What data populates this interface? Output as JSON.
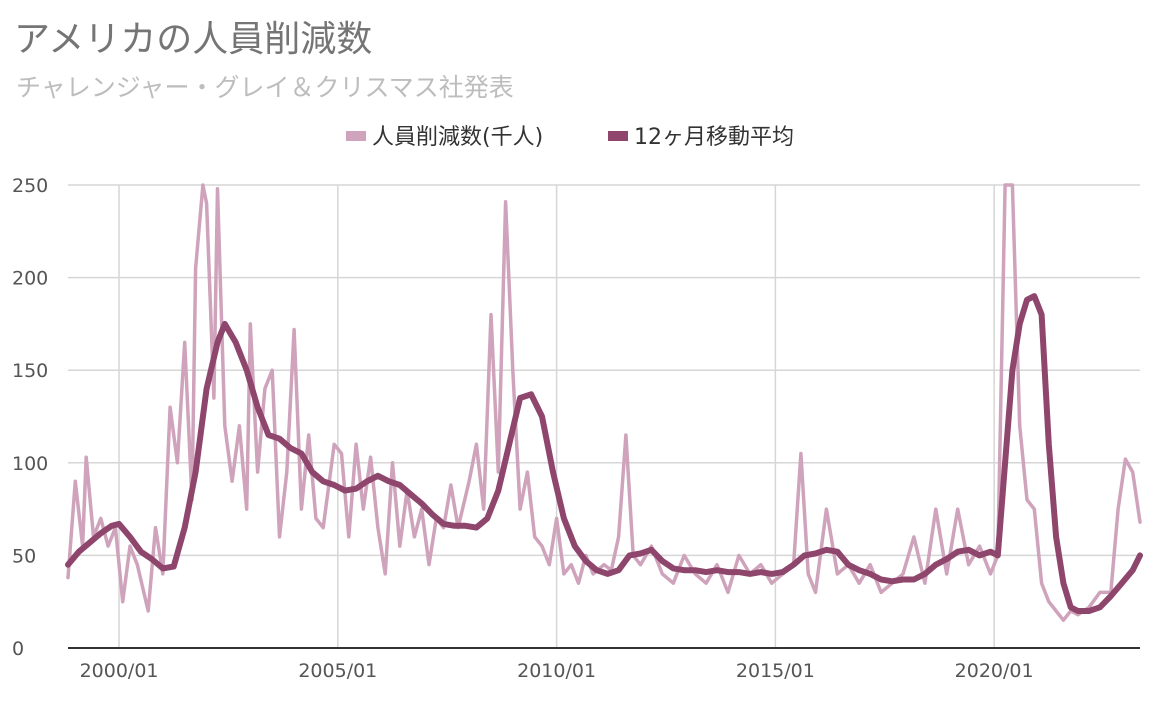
{
  "chart_data": {
    "type": "line",
    "title": "アメリカの人員削減数",
    "subtitle": "チャレンジャー・グレイ＆クリスマス社発表",
    "legend_position": "top",
    "grid": true,
    "colors": {
      "monthly": "#cfa3bb",
      "avg": "#8f466d"
    },
    "x_range": [
      "1998-11",
      "2023-05"
    ],
    "ylim": [
      0,
      250
    ],
    "y_ticks": [
      "0",
      "50",
      "100",
      "150",
      "200",
      "250"
    ],
    "x_ticks": [
      {
        "date": "2000-01",
        "label": "2000/01"
      },
      {
        "date": "2005-01",
        "label": "2005/01"
      },
      {
        "date": "2010-01",
        "label": "2010/01"
      },
      {
        "date": "2015-01",
        "label": "2015/01"
      },
      {
        "date": "2020-01",
        "label": "2020/01"
      }
    ],
    "series": [
      {
        "name": "人員削減数(千人)",
        "points": [
          [
            "1998-11",
            38
          ],
          [
            "1999-01",
            90
          ],
          [
            "1999-03",
            55
          ],
          [
            "1999-04",
            103
          ],
          [
            "1999-06",
            60
          ],
          [
            "1999-08",
            70
          ],
          [
            "1999-10",
            55
          ],
          [
            "1999-12",
            65
          ],
          [
            "2000-02",
            25
          ],
          [
            "2000-04",
            55
          ],
          [
            "2000-06",
            45
          ],
          [
            "2000-09",
            20
          ],
          [
            "2000-11",
            65
          ],
          [
            "2001-01",
            40
          ],
          [
            "2001-03",
            130
          ],
          [
            "2001-05",
            100
          ],
          [
            "2001-07",
            165
          ],
          [
            "2001-09",
            80
          ],
          [
            "2001-10",
            205
          ],
          [
            "2001-12",
            250
          ],
          [
            "2002-01",
            240
          ],
          [
            "2002-03",
            135
          ],
          [
            "2002-04",
            248
          ],
          [
            "2002-06",
            120
          ],
          [
            "2002-08",
            90
          ],
          [
            "2002-10",
            120
          ],
          [
            "2002-12",
            75
          ],
          [
            "2003-01",
            175
          ],
          [
            "2003-03",
            95
          ],
          [
            "2003-05",
            140
          ],
          [
            "2003-07",
            150
          ],
          [
            "2003-09",
            60
          ],
          [
            "2003-11",
            95
          ],
          [
            "2004-01",
            172
          ],
          [
            "2004-03",
            75
          ],
          [
            "2004-05",
            115
          ],
          [
            "2004-07",
            70
          ],
          [
            "2004-09",
            65
          ],
          [
            "2004-12",
            110
          ],
          [
            "2005-02",
            105
          ],
          [
            "2005-04",
            60
          ],
          [
            "2005-06",
            110
          ],
          [
            "2005-08",
            75
          ],
          [
            "2005-10",
            103
          ],
          [
            "2005-12",
            65
          ],
          [
            "2006-02",
            40
          ],
          [
            "2006-04",
            100
          ],
          [
            "2006-06",
            55
          ],
          [
            "2006-08",
            85
          ],
          [
            "2006-10",
            60
          ],
          [
            "2006-12",
            75
          ],
          [
            "2007-02",
            45
          ],
          [
            "2007-04",
            70
          ],
          [
            "2007-06",
            65
          ],
          [
            "2007-08",
            88
          ],
          [
            "2007-10",
            65
          ],
          [
            "2008-01",
            90
          ],
          [
            "2008-03",
            110
          ],
          [
            "2008-05",
            75
          ],
          [
            "2008-07",
            180
          ],
          [
            "2008-09",
            95
          ],
          [
            "2008-11",
            241
          ],
          [
            "2009-01",
            150
          ],
          [
            "2009-03",
            75
          ],
          [
            "2009-05",
            95
          ],
          [
            "2009-07",
            60
          ],
          [
            "2009-09",
            55
          ],
          [
            "2009-11",
            45
          ],
          [
            "2010-01",
            70
          ],
          [
            "2010-03",
            40
          ],
          [
            "2010-05",
            45
          ],
          [
            "2010-07",
            35
          ],
          [
            "2010-09",
            50
          ],
          [
            "2010-11",
            40
          ],
          [
            "2011-02",
            45
          ],
          [
            "2011-04",
            42
          ],
          [
            "2011-06",
            60
          ],
          [
            "2011-08",
            115
          ],
          [
            "2011-10",
            50
          ],
          [
            "2011-12",
            45
          ],
          [
            "2012-03",
            55
          ],
          [
            "2012-06",
            40
          ],
          [
            "2012-09",
            35
          ],
          [
            "2012-12",
            50
          ],
          [
            "2013-03",
            40
          ],
          [
            "2013-06",
            35
          ],
          [
            "2013-09",
            45
          ],
          [
            "2013-12",
            30
          ],
          [
            "2014-03",
            50
          ],
          [
            "2014-06",
            40
          ],
          [
            "2014-09",
            45
          ],
          [
            "2014-12",
            35
          ],
          [
            "2015-03",
            40
          ],
          [
            "2015-06",
            45
          ],
          [
            "2015-08",
            105
          ],
          [
            "2015-10",
            40
          ],
          [
            "2015-12",
            30
          ],
          [
            "2016-03",
            75
          ],
          [
            "2016-06",
            40
          ],
          [
            "2016-09",
            45
          ],
          [
            "2016-12",
            35
          ],
          [
            "2017-03",
            45
          ],
          [
            "2017-06",
            30
          ],
          [
            "2017-09",
            35
          ],
          [
            "2017-12",
            40
          ],
          [
            "2018-03",
            60
          ],
          [
            "2018-06",
            35
          ],
          [
            "2018-09",
            75
          ],
          [
            "2018-12",
            40
          ],
          [
            "2019-03",
            75
          ],
          [
            "2019-06",
            45
          ],
          [
            "2019-09",
            55
          ],
          [
            "2019-12",
            40
          ],
          [
            "2020-02",
            50
          ],
          [
            "2020-04",
            250
          ],
          [
            "2020-06",
            250
          ],
          [
            "2020-08",
            120
          ],
          [
            "2020-10",
            80
          ],
          [
            "2020-12",
            75
          ],
          [
            "2021-02",
            35
          ],
          [
            "2021-04",
            25
          ],
          [
            "2021-06",
            20
          ],
          [
            "2021-08",
            15
          ],
          [
            "2021-10",
            20
          ],
          [
            "2021-12",
            18
          ],
          [
            "2022-03",
            22
          ],
          [
            "2022-06",
            30
          ],
          [
            "2022-09",
            30
          ],
          [
            "2022-11",
            75
          ],
          [
            "2023-01",
            102
          ],
          [
            "2023-03",
            95
          ],
          [
            "2023-05",
            68
          ]
        ]
      },
      {
        "name": "12ヶ月移動平均",
        "points": [
          [
            "1998-11",
            45
          ],
          [
            "1999-02",
            52
          ],
          [
            "1999-05",
            57
          ],
          [
            "1999-08",
            62
          ],
          [
            "1999-11",
            66
          ],
          [
            "2000-01",
            67
          ],
          [
            "2000-04",
            60
          ],
          [
            "2000-07",
            52
          ],
          [
            "2000-10",
            48
          ],
          [
            "2001-01",
            43
          ],
          [
            "2001-04",
            44
          ],
          [
            "2001-07",
            65
          ],
          [
            "2001-10",
            95
          ],
          [
            "2002-01",
            140
          ],
          [
            "2002-04",
            165
          ],
          [
            "2002-06",
            175
          ],
          [
            "2002-09",
            165
          ],
          [
            "2002-12",
            150
          ],
          [
            "2003-03",
            130
          ],
          [
            "2003-06",
            115
          ],
          [
            "2003-09",
            113
          ],
          [
            "2003-12",
            108
          ],
          [
            "2004-03",
            105
          ],
          [
            "2004-06",
            95
          ],
          [
            "2004-09",
            90
          ],
          [
            "2004-12",
            88
          ],
          [
            "2005-03",
            85
          ],
          [
            "2005-06",
            86
          ],
          [
            "2005-09",
            90
          ],
          [
            "2005-12",
            93
          ],
          [
            "2006-03",
            90
          ],
          [
            "2006-06",
            88
          ],
          [
            "2006-09",
            83
          ],
          [
            "2006-12",
            78
          ],
          [
            "2007-03",
            72
          ],
          [
            "2007-06",
            67
          ],
          [
            "2007-09",
            66
          ],
          [
            "2007-12",
            66
          ],
          [
            "2008-03",
            65
          ],
          [
            "2008-06",
            70
          ],
          [
            "2008-09",
            85
          ],
          [
            "2008-12",
            110
          ],
          [
            "2009-03",
            135
          ],
          [
            "2009-06",
            137
          ],
          [
            "2009-09",
            125
          ],
          [
            "2009-12",
            95
          ],
          [
            "2010-03",
            70
          ],
          [
            "2010-06",
            55
          ],
          [
            "2010-09",
            47
          ],
          [
            "2010-12",
            42
          ],
          [
            "2011-03",
            40
          ],
          [
            "2011-06",
            42
          ],
          [
            "2011-09",
            50
          ],
          [
            "2011-12",
            51
          ],
          [
            "2012-03",
            53
          ],
          [
            "2012-06",
            47
          ],
          [
            "2012-09",
            43
          ],
          [
            "2012-12",
            42
          ],
          [
            "2013-03",
            42
          ],
          [
            "2013-06",
            41
          ],
          [
            "2013-09",
            42
          ],
          [
            "2013-12",
            41
          ],
          [
            "2014-03",
            41
          ],
          [
            "2014-06",
            40
          ],
          [
            "2014-09",
            41
          ],
          [
            "2014-12",
            40
          ],
          [
            "2015-03",
            41
          ],
          [
            "2015-06",
            45
          ],
          [
            "2015-09",
            50
          ],
          [
            "2015-12",
            51
          ],
          [
            "2016-03",
            53
          ],
          [
            "2016-06",
            52
          ],
          [
            "2016-09",
            45
          ],
          [
            "2016-12",
            42
          ],
          [
            "2017-03",
            40
          ],
          [
            "2017-06",
            37
          ],
          [
            "2017-09",
            36
          ],
          [
            "2017-12",
            37
          ],
          [
            "2018-03",
            37
          ],
          [
            "2018-06",
            40
          ],
          [
            "2018-09",
            45
          ],
          [
            "2018-12",
            48
          ],
          [
            "2019-03",
            52
          ],
          [
            "2019-06",
            53
          ],
          [
            "2019-09",
            50
          ],
          [
            "2019-12",
            52
          ],
          [
            "2020-02",
            50
          ],
          [
            "2020-04",
            100
          ],
          [
            "2020-06",
            150
          ],
          [
            "2020-08",
            175
          ],
          [
            "2020-10",
            188
          ],
          [
            "2020-12",
            190
          ],
          [
            "2021-02",
            180
          ],
          [
            "2021-04",
            110
          ],
          [
            "2021-06",
            60
          ],
          [
            "2021-08",
            35
          ],
          [
            "2021-10",
            22
          ],
          [
            "2021-12",
            20
          ],
          [
            "2022-03",
            20
          ],
          [
            "2022-06",
            22
          ],
          [
            "2022-09",
            28
          ],
          [
            "2022-12",
            35
          ],
          [
            "2023-03",
            42
          ],
          [
            "2023-05",
            50
          ]
        ]
      }
    ]
  }
}
